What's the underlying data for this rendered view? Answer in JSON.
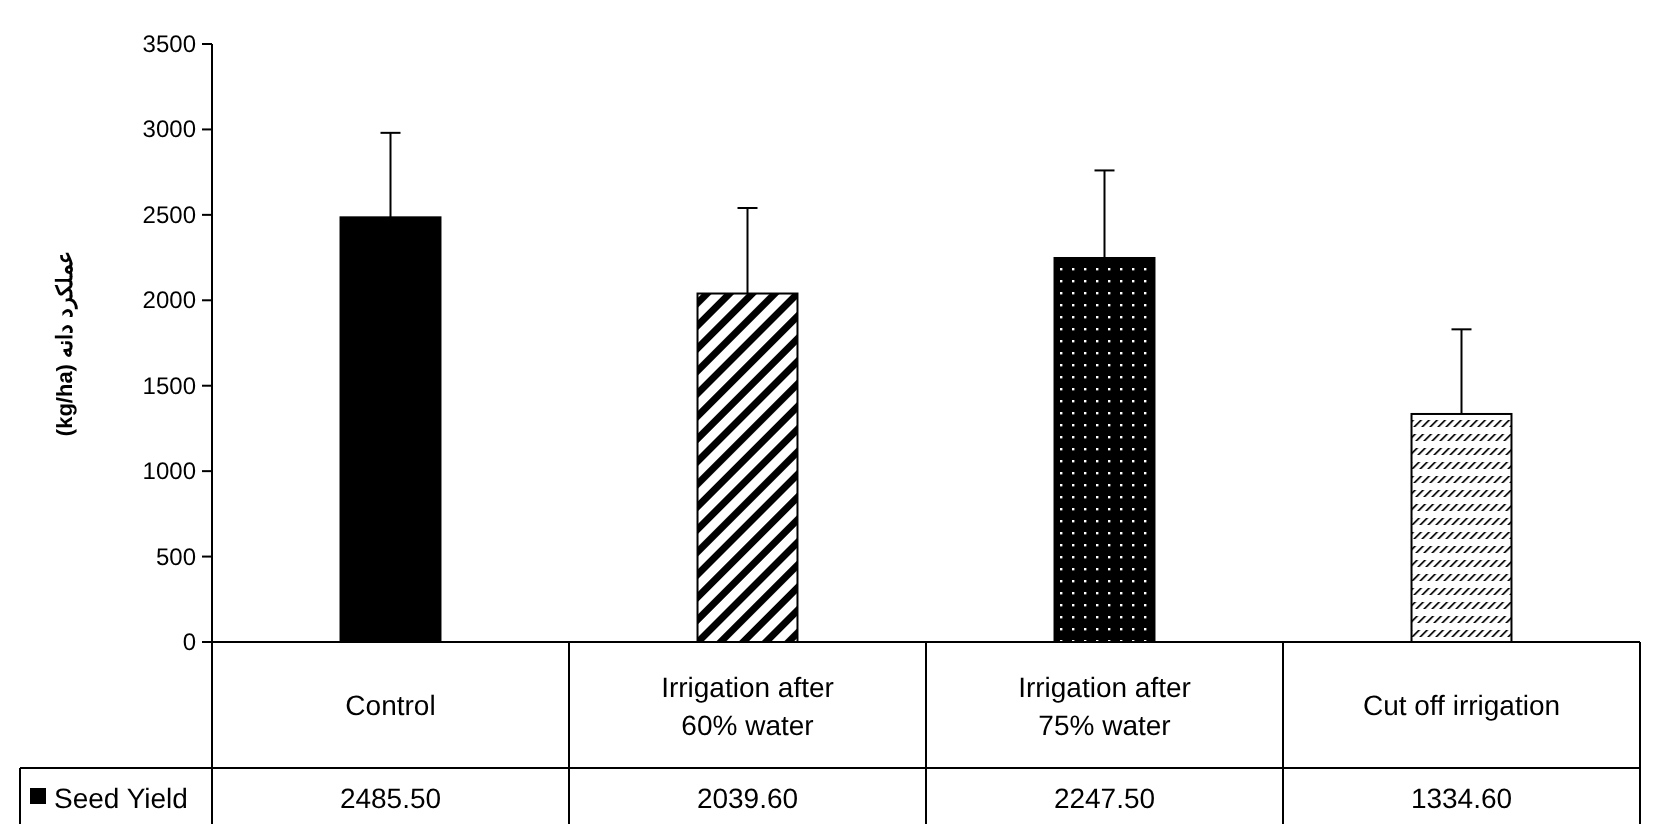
{
  "chart_data": {
    "type": "bar",
    "ylabel": "عملکرد دانه (kg/ha)",
    "categories": [
      "Control",
      "Irrigation after 60% water",
      "Irrigation after 75% water",
      "Cut off irrigation"
    ],
    "series": [
      {
        "name": "Seed Yield",
        "colors": [
          "#000000",
          "#000000",
          "#000000",
          "#000000"
        ],
        "values": [
          2485.5,
          2039.6,
          2247.5,
          1334.6
        ],
        "value_labels": [
          "2485.50",
          "2039.60",
          "2247.50",
          "1334.60"
        ],
        "errors": [
          [
            2485.5,
            2980
          ],
          [
            2039.6,
            2540
          ],
          [
            2247.5,
            2760
          ],
          [
            1334.6,
            1830
          ]
        ]
      }
    ],
    "ylim": [
      0,
      3500
    ],
    "yticks": [
      0,
      500,
      1000,
      1500,
      2000,
      2500,
      3000,
      3500
    ],
    "legend": "bottom",
    "grid": false
  }
}
